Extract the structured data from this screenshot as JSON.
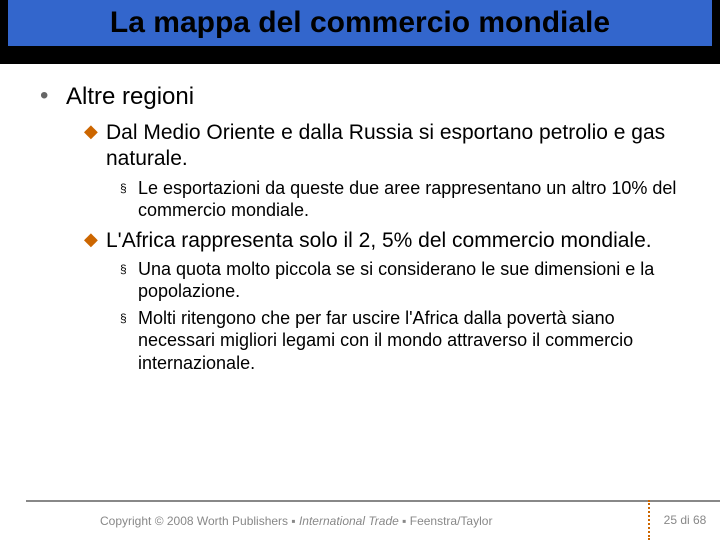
{
  "colors": {
    "title_bg": "#3366cc",
    "title_bar_bg": "#000000",
    "title_text": "#000000",
    "lvl1_bullet": "#666666",
    "lvl2_bullet": "#cc6600",
    "lvl3_bullet": "#000000",
    "footer_line": "#888888",
    "footer_text": "#888888",
    "page_divider": "#cc6600",
    "background": "#ffffff"
  },
  "typography": {
    "title_fontsize": 30,
    "lvl1_fontsize": 24,
    "lvl2_fontsize": 21,
    "lvl3_fontsize": 18,
    "footer_fontsize": 12,
    "font_family": "Arial"
  },
  "title": "La mappa del commercio mondiale",
  "bullets": {
    "lvl1_glyph": "•",
    "lvl2_glyph": "◆",
    "lvl3_glyph": "§"
  },
  "content": {
    "lvl1_0": "Altre regioni",
    "lvl2_0": "Dal Medio Oriente e dalla Russia si esportano petrolio e gas naturale.",
    "lvl3_0": "Le esportazioni da queste due aree rappresentano un altro 10% del commercio mondiale.",
    "lvl2_1": "L'Africa rappresenta solo il 2, 5% del commercio mondiale.",
    "lvl3_1": "Una quota molto piccola se si considerano le sue dimensioni e la popolazione.",
    "lvl3_2": "Molti ritengono  che per far uscire l'Africa dalla povertà siano necessari migliori legami con il mondo attraverso il commercio internazionale."
  },
  "footer": {
    "copyright_prefix": "Copyright © 2008 Worth Publishers ▪ ",
    "copyright_italic": "International Trade",
    "copyright_suffix": " ▪ Feenstra/Taylor",
    "page": "25 di 68"
  }
}
